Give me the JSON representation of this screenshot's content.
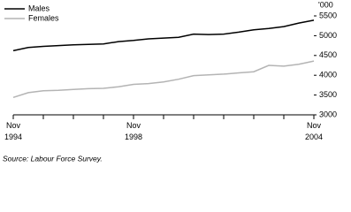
{
  "chart_data": {
    "type": "line",
    "y_unit": "'000",
    "source": "Source: Labour Force Survey.",
    "categories": [
      "Nov 1994",
      null,
      null,
      null,
      null,
      null,
      null,
      null,
      "Nov 1998",
      null,
      null,
      null,
      null,
      null,
      null,
      null,
      null,
      null,
      null,
      null,
      "Nov 2004"
    ],
    "series": [
      {
        "name": "Males",
        "color": "#000000",
        "values": [
          4620,
          4700,
          4730,
          4750,
          4770,
          4780,
          4790,
          4850,
          4880,
          4920,
          4940,
          4960,
          5040,
          5030,
          5040,
          5090,
          5150,
          5180,
          5230,
          5320,
          5390
        ]
      },
      {
        "name": "Females",
        "color": "#b4b4b4",
        "values": [
          3440,
          3560,
          3610,
          3620,
          3640,
          3660,
          3670,
          3710,
          3770,
          3790,
          3830,
          3900,
          3990,
          4010,
          4030,
          4060,
          4090,
          4250,
          4230,
          4280,
          4360
        ]
      }
    ],
    "ylim": [
      3000,
      5500
    ],
    "yticks": [
      3000,
      3500,
      4000,
      4500,
      5000,
      5500
    ],
    "legend": "top-left"
  }
}
